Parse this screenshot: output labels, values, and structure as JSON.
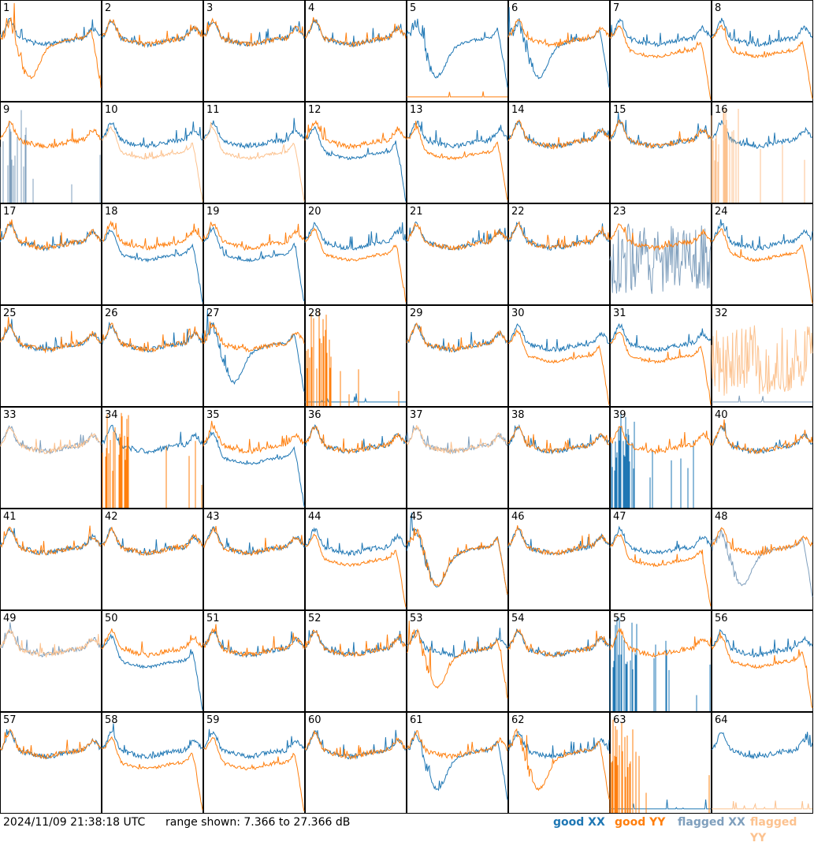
{
  "footer": {
    "timestamp": "2024/11/09 21:38:18 UTC",
    "range_text": "range shown: 7.366 to 27.366 dB",
    "legend": [
      {
        "key": "good_xx",
        "label": "good XX",
        "color": "#1f77b4"
      },
      {
        "key": "good_yy",
        "label": "good YY",
        "color": "#ff7f0e"
      },
      {
        "key": "flagged_xx",
        "label": "flagged XX",
        "color": "#7f9fbd"
      },
      {
        "key": "flagged_yy",
        "label": "flagged YY",
        "color": "#fcc28f"
      }
    ]
  },
  "chart_data": {
    "type": "line",
    "xlabel": "",
    "ylabel": "",
    "ylim": [
      7.366,
      27.366
    ],
    "grid": false,
    "legend_placement": "bottom-right",
    "panel_count": 64,
    "panels": [
      {
        "label": "1",
        "xx": "good",
        "yy": "good",
        "shape_xx": "normal",
        "shape_yy": "dip"
      },
      {
        "label": "2",
        "xx": "good",
        "yy": "good",
        "shape_xx": "normal",
        "shape_yy": "normal"
      },
      {
        "label": "3",
        "xx": "good",
        "yy": "good",
        "shape_xx": "normal",
        "shape_yy": "normal"
      },
      {
        "label": "4",
        "xx": "good",
        "yy": "good",
        "shape_xx": "normal",
        "shape_yy": "normal"
      },
      {
        "label": "5",
        "xx": "good",
        "yy": "good",
        "shape_xx": "dip",
        "shape_yy": "flat"
      },
      {
        "label": "6",
        "xx": "good",
        "yy": "good",
        "shape_xx": "dip",
        "shape_yy": "normal"
      },
      {
        "label": "7",
        "xx": "good",
        "yy": "good",
        "shape_xx": "normal",
        "shape_yy": "low"
      },
      {
        "label": "8",
        "xx": "good",
        "yy": "good",
        "shape_xx": "normal",
        "shape_yy": "low"
      },
      {
        "label": "9",
        "xx": "flagged",
        "yy": "good",
        "shape_xx": "spikes",
        "shape_yy": "normal"
      },
      {
        "label": "10",
        "xx": "good",
        "yy": "flagged",
        "shape_xx": "normal",
        "shape_yy": "low"
      },
      {
        "label": "11",
        "xx": "good",
        "yy": "flagged",
        "shape_xx": "normal",
        "shape_yy": "low"
      },
      {
        "label": "12",
        "xx": "good",
        "yy": "good",
        "shape_xx": "low",
        "shape_yy": "normal"
      },
      {
        "label": "13",
        "xx": "good",
        "yy": "good",
        "shape_xx": "normal",
        "shape_yy": "low"
      },
      {
        "label": "14",
        "xx": "good",
        "yy": "good",
        "shape_xx": "normal",
        "shape_yy": "normal"
      },
      {
        "label": "15",
        "xx": "good",
        "yy": "good",
        "shape_xx": "normal",
        "shape_yy": "normal"
      },
      {
        "label": "16",
        "xx": "good",
        "yy": "flagged",
        "shape_xx": "normal",
        "shape_yy": "spikes"
      },
      {
        "label": "17",
        "xx": "good",
        "yy": "good",
        "shape_xx": "normal",
        "shape_yy": "normal"
      },
      {
        "label": "18",
        "xx": "good",
        "yy": "good",
        "shape_xx": "low",
        "shape_yy": "normal"
      },
      {
        "label": "19",
        "xx": "good",
        "yy": "good",
        "shape_xx": "low",
        "shape_yy": "normal"
      },
      {
        "label": "20",
        "xx": "good",
        "yy": "good",
        "shape_xx": "normal",
        "shape_yy": "low"
      },
      {
        "label": "21",
        "xx": "good",
        "yy": "good",
        "shape_xx": "normal",
        "shape_yy": "normal"
      },
      {
        "label": "22",
        "xx": "good",
        "yy": "good",
        "shape_xx": "normal",
        "shape_yy": "normal"
      },
      {
        "label": "23",
        "xx": "flagged",
        "yy": "good",
        "shape_xx": "noisy",
        "shape_yy": "normal"
      },
      {
        "label": "24",
        "xx": "good",
        "yy": "good",
        "shape_xx": "normal",
        "shape_yy": "low"
      },
      {
        "label": "25",
        "xx": "good",
        "yy": "good",
        "shape_xx": "normal",
        "shape_yy": "normal"
      },
      {
        "label": "26",
        "xx": "good",
        "yy": "good",
        "shape_xx": "normal",
        "shape_yy": "normal"
      },
      {
        "label": "27",
        "xx": "good",
        "yy": "good",
        "shape_xx": "dip",
        "shape_yy": "normal"
      },
      {
        "label": "28",
        "xx": "good",
        "yy": "good",
        "shape_xx": "flat",
        "shape_yy": "spikes"
      },
      {
        "label": "29",
        "xx": "good",
        "yy": "good",
        "shape_xx": "normal",
        "shape_yy": "normal"
      },
      {
        "label": "30",
        "xx": "good",
        "yy": "good",
        "shape_xx": "normal",
        "shape_yy": "low"
      },
      {
        "label": "31",
        "xx": "good",
        "yy": "good",
        "shape_xx": "normal",
        "shape_yy": "low"
      },
      {
        "label": "32",
        "xx": "flagged",
        "yy": "flagged",
        "shape_xx": "flat",
        "shape_yy": "noisy"
      },
      {
        "label": "33",
        "xx": "flagged",
        "yy": "flagged",
        "shape_xx": "normal",
        "shape_yy": "normal"
      },
      {
        "label": "34",
        "xx": "good",
        "yy": "good",
        "shape_xx": "normal",
        "shape_yy": "spikes"
      },
      {
        "label": "35",
        "xx": "good",
        "yy": "good",
        "shape_xx": "low",
        "shape_yy": "normal"
      },
      {
        "label": "36",
        "xx": "good",
        "yy": "good",
        "shape_xx": "normal",
        "shape_yy": "normal"
      },
      {
        "label": "37",
        "xx": "flagged",
        "yy": "flagged",
        "shape_xx": "normal",
        "shape_yy": "normal"
      },
      {
        "label": "38",
        "xx": "good",
        "yy": "good",
        "shape_xx": "normal",
        "shape_yy": "normal"
      },
      {
        "label": "39",
        "xx": "good",
        "yy": "good",
        "shape_xx": "spikes",
        "shape_yy": "normal"
      },
      {
        "label": "40",
        "xx": "good",
        "yy": "good",
        "shape_xx": "normal",
        "shape_yy": "normal"
      },
      {
        "label": "41",
        "xx": "good",
        "yy": "good",
        "shape_xx": "normal",
        "shape_yy": "normal"
      },
      {
        "label": "42",
        "xx": "good",
        "yy": "good",
        "shape_xx": "normal",
        "shape_yy": "normal"
      },
      {
        "label": "43",
        "xx": "good",
        "yy": "good",
        "shape_xx": "normal",
        "shape_yy": "normal"
      },
      {
        "label": "44",
        "xx": "good",
        "yy": "good",
        "shape_xx": "normal",
        "shape_yy": "low"
      },
      {
        "label": "45",
        "xx": "good",
        "yy": "good",
        "shape_xx": "dip",
        "shape_yy": "dip"
      },
      {
        "label": "46",
        "xx": "good",
        "yy": "good",
        "shape_xx": "normal",
        "shape_yy": "normal"
      },
      {
        "label": "47",
        "xx": "good",
        "yy": "good",
        "shape_xx": "normal",
        "shape_yy": "low"
      },
      {
        "label": "48",
        "xx": "flagged",
        "yy": "good",
        "shape_xx": "dip",
        "shape_yy": "normal"
      },
      {
        "label": "49",
        "xx": "flagged",
        "yy": "flagged",
        "shape_xx": "normal",
        "shape_yy": "normal"
      },
      {
        "label": "50",
        "xx": "good",
        "yy": "good",
        "shape_xx": "low",
        "shape_yy": "normal"
      },
      {
        "label": "51",
        "xx": "good",
        "yy": "good",
        "shape_xx": "normal",
        "shape_yy": "normal"
      },
      {
        "label": "52",
        "xx": "good",
        "yy": "good",
        "shape_xx": "normal",
        "shape_yy": "normal"
      },
      {
        "label": "53",
        "xx": "good",
        "yy": "good",
        "shape_xx": "normal",
        "shape_yy": "dip"
      },
      {
        "label": "54",
        "xx": "good",
        "yy": "good",
        "shape_xx": "normal",
        "shape_yy": "normal"
      },
      {
        "label": "55",
        "xx": "good",
        "yy": "good",
        "shape_xx": "spikes",
        "shape_yy": "normal"
      },
      {
        "label": "56",
        "xx": "good",
        "yy": "good",
        "shape_xx": "normal",
        "shape_yy": "low"
      },
      {
        "label": "57",
        "xx": "good",
        "yy": "good",
        "shape_xx": "normal",
        "shape_yy": "normal"
      },
      {
        "label": "58",
        "xx": "good",
        "yy": "good",
        "shape_xx": "normal",
        "shape_yy": "low"
      },
      {
        "label": "59",
        "xx": "good",
        "yy": "good",
        "shape_xx": "normal",
        "shape_yy": "low"
      },
      {
        "label": "60",
        "xx": "good",
        "yy": "good",
        "shape_xx": "normal",
        "shape_yy": "normal"
      },
      {
        "label": "61",
        "xx": "good",
        "yy": "good",
        "shape_xx": "dip",
        "shape_yy": "normal"
      },
      {
        "label": "62",
        "xx": "good",
        "yy": "good",
        "shape_xx": "normal",
        "shape_yy": "dip"
      },
      {
        "label": "63",
        "xx": "good",
        "yy": "good",
        "shape_xx": "flat",
        "shape_yy": "spikes"
      },
      {
        "label": "64",
        "xx": "good",
        "yy": "flagged",
        "shape_xx": "normal",
        "shape_yy": "flat"
      }
    ]
  }
}
